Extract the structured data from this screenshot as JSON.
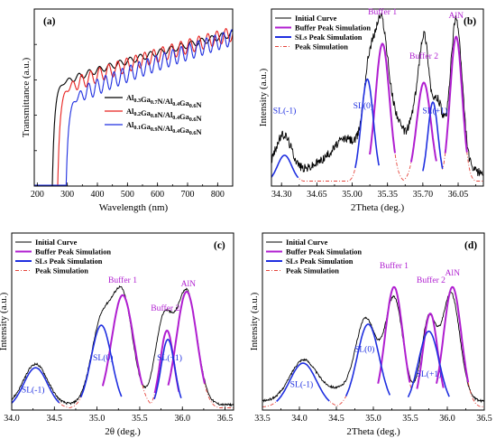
{
  "colors": {
    "black": "#000000",
    "red": "#e8211f",
    "blue": "#1f2fe0",
    "purple": "#b01fd0",
    "redDash": "#e5443b"
  },
  "chart_data": [
    {
      "panel": "(a)",
      "type": "line",
      "xlabel": "Wavelength (nm)",
      "ylabel": "Transmittance (a.u.)",
      "xlim": [
        190,
        850
      ],
      "ylim": [
        0,
        1
      ],
      "xticks": [
        "200",
        "300",
        "400",
        "500",
        "600",
        "700",
        "800"
      ],
      "xtick_values": [
        200,
        300,
        400,
        500,
        600,
        700,
        800
      ],
      "legend_position": "center-right",
      "series": [
        {
          "name": "Al0.3Ga0.7N/Al0.4Ga0.6N",
          "name_parts": [
            [
              "Al",
              false
            ],
            [
              "0.3",
              true
            ],
            [
              "Ga",
              false
            ],
            [
              "0.7",
              true
            ],
            [
              "N/Al",
              false
            ],
            [
              "0.4",
              true
            ],
            [
              "Ga",
              false
            ],
            [
              "0.6",
              true
            ],
            [
              "N",
              false
            ]
          ],
          "color": "#000000",
          "edge": 262,
          "plateau": 0.56,
          "end": 0.86,
          "osc_amp": 0.018,
          "osc_period": 34
        },
        {
          "name": "Al0.2Ga0.8N/Al0.4Ga0.6N",
          "name_parts": [
            [
              "Al",
              false
            ],
            [
              "0.2",
              true
            ],
            [
              "Ga",
              false
            ],
            [
              "0.8",
              true
            ],
            [
              "N/Al",
              false
            ],
            [
              "0.4",
              true
            ],
            [
              "Ga",
              false
            ],
            [
              "0.6",
              true
            ],
            [
              "N",
              false
            ]
          ],
          "color": "#e8211f",
          "edge": 280,
          "plateau": 0.53,
          "end": 0.86,
          "osc_amp": 0.04,
          "osc_period": 30
        },
        {
          "name": "Al0.1Ga0.9N/Al0.4Ga0.6N",
          "name_parts": [
            [
              "Al",
              false
            ],
            [
              "0.1",
              true
            ],
            [
              "Ga",
              false
            ],
            [
              "0.9",
              true
            ],
            [
              "N/Al",
              false
            ],
            [
              "0.4",
              true
            ],
            [
              "Ga",
              false
            ],
            [
              "0.6",
              true
            ],
            [
              "N",
              false
            ]
          ],
          "color": "#1f2fe0",
          "edge": 308,
          "plateau": 0.47,
          "end": 0.84,
          "osc_amp": 0.045,
          "osc_period": 28
        }
      ]
    },
    {
      "panel": "(b)",
      "type": "line",
      "xlabel": "2Theta (deg.)",
      "ylabel": "Intensity (a.u.)",
      "xlim": [
        34.2,
        36.3
      ],
      "ylim": [
        0,
        1
      ],
      "xticks": [
        "34.30",
        "34.65",
        "35.00",
        "35.35",
        "35.70",
        "36.05"
      ],
      "xtick_values": [
        34.3,
        34.65,
        35.0,
        35.35,
        35.7,
        36.05
      ],
      "legend_position": "top-left",
      "legend": [
        "Initial Curve",
        "Buffer Peak Simulation",
        "SLs Peak Simulation",
        "Peak Simulation"
      ],
      "baseline": 0.08,
      "initial_peaks": [
        [
          34.32,
          0.21,
          0.08
        ],
        [
          34.72,
          0.05,
          0.12
        ],
        [
          34.95,
          0.18,
          0.12
        ],
        [
          35.17,
          0.55,
          0.06
        ],
        [
          35.29,
          0.72,
          0.06
        ],
        [
          35.42,
          0.3,
          0.08
        ],
        [
          35.63,
          0.32,
          0.07
        ],
        [
          35.72,
          0.62,
          0.05
        ],
        [
          35.85,
          0.38,
          0.05
        ],
        [
          36.03,
          0.86,
          0.06
        ]
      ],
      "buffer_peaks": [
        [
          35.3,
          0.78,
          0.07
        ],
        [
          35.71,
          0.56,
          0.07
        ],
        [
          36.03,
          0.82,
          0.06
        ]
      ],
      "sl_peaks": [
        [
          34.33,
          0.15,
          0.07
        ],
        [
          35.15,
          0.58,
          0.06
        ],
        [
          35.8,
          0.45,
          0.05
        ]
      ],
      "annotations": [
        {
          "text": "Buffer 1",
          "x": 35.3,
          "y": 0.97,
          "color": "#b01fd0"
        },
        {
          "text": "Buffer 2",
          "x": 35.71,
          "y": 0.72,
          "color": "#b01fd0"
        },
        {
          "text": "AlN",
          "x": 36.03,
          "y": 0.95,
          "color": "#b01fd0"
        },
        {
          "text": "SL(-1)",
          "x": 34.33,
          "y": 0.41,
          "color": "#1f2fe0"
        },
        {
          "text": "SL(0)",
          "x": 35.11,
          "y": 0.44,
          "color": "#1f2fe0"
        },
        {
          "text": "SL(+1)",
          "x": 35.82,
          "y": 0.41,
          "color": "#1f2fe0"
        }
      ]
    },
    {
      "panel": "(c)",
      "type": "line",
      "xlabel": "2θ (deg.)",
      "ylabel": "Intensity (a.u.)",
      "xlim": [
        34.0,
        36.6
      ],
      "ylim": [
        0,
        1
      ],
      "xticks": [
        "34.0",
        "34.5",
        "35.0",
        "35.5",
        "36.0",
        "36.5"
      ],
      "xtick_values": [
        34.0,
        34.5,
        35.0,
        35.5,
        36.0,
        36.5
      ],
      "legend_position": "top-left",
      "legend": [
        "Initial Curve",
        "Buffer Peak Simulation",
        "SLs Peak Simulation",
        "Peak Simulation"
      ],
      "baseline": 0.03,
      "initial_peaks": [
        [
          34.28,
          0.23,
          0.14
        ],
        [
          35.05,
          0.45,
          0.12
        ],
        [
          35.3,
          0.6,
          0.12
        ],
        [
          35.78,
          0.47,
          0.1
        ],
        [
          36.05,
          0.64,
          0.12
        ]
      ],
      "buffer_peaks": [
        [
          35.3,
          0.64,
          0.13
        ],
        [
          35.82,
          0.44,
          0.08
        ],
        [
          36.05,
          0.66,
          0.12
        ]
      ],
      "sl_peaks": [
        [
          34.28,
          0.23,
          0.14
        ],
        [
          35.05,
          0.47,
          0.12
        ],
        [
          35.83,
          0.39,
          0.08
        ]
      ],
      "annotations": [
        {
          "text": "Buffer 1",
          "x": 35.3,
          "y": 0.72,
          "color": "#b01fd0"
        },
        {
          "text": "Buffer 2",
          "x": 35.8,
          "y": 0.56,
          "color": "#b01fd0"
        },
        {
          "text": "AlN",
          "x": 36.07,
          "y": 0.7,
          "color": "#b01fd0"
        },
        {
          "text": "SL(-1)",
          "x": 34.25,
          "y": 0.1,
          "color": "#1f2fe0"
        },
        {
          "text": "SL(0)",
          "x": 35.07,
          "y": 0.28,
          "color": "#1f2fe0"
        },
        {
          "text": "SL(+1)",
          "x": 35.85,
          "y": 0.28,
          "color": "#1f2fe0"
        }
      ]
    },
    {
      "panel": "(d)",
      "type": "line",
      "xlabel": "2Theta (deg.)",
      "ylabel": "Intensity (a.u.)",
      "xlim": [
        33.5,
        36.5
      ],
      "ylim": [
        0,
        1
      ],
      "xticks": [
        "33.5",
        "34.0",
        "34.5",
        "35.0",
        "35.5",
        "36.0",
        "36.5"
      ],
      "xtick_values": [
        33.5,
        34.0,
        34.5,
        35.0,
        35.5,
        36.0,
        36.5
      ],
      "legend_position": "top-left",
      "legend": [
        "Initial Curve",
        "Buffer Peak Simulation",
        "SLs Peak Simulation",
        "Peak Simulation"
      ],
      "baseline": 0.05,
      "initial_peaks": [
        [
          34.05,
          0.23,
          0.18
        ],
        [
          34.5,
          0.06,
          0.2
        ],
        [
          34.9,
          0.46,
          0.14
        ],
        [
          35.28,
          0.58,
          0.12
        ],
        [
          35.75,
          0.46,
          0.1
        ],
        [
          36.05,
          0.61,
          0.12
        ]
      ],
      "buffer_peaks": [
        [
          35.28,
          0.68,
          0.12
        ],
        [
          35.77,
          0.53,
          0.1
        ],
        [
          36.07,
          0.68,
          0.12
        ]
      ],
      "sl_peaks": [
        [
          34.05,
          0.25,
          0.18
        ],
        [
          34.93,
          0.47,
          0.15
        ],
        [
          35.75,
          0.43,
          0.14
        ]
      ],
      "annotations": [
        {
          "text": "Buffer 1",
          "x": 35.28,
          "y": 0.8,
          "color": "#b01fd0"
        },
        {
          "text": "Buffer 2",
          "x": 35.78,
          "y": 0.72,
          "color": "#b01fd0"
        },
        {
          "text": "AlN",
          "x": 36.07,
          "y": 0.76,
          "color": "#b01fd0"
        },
        {
          "text": "SL(-1)",
          "x": 34.03,
          "y": 0.13,
          "color": "#1f2fe0"
        },
        {
          "text": "SL(0)",
          "x": 34.88,
          "y": 0.33,
          "color": "#1f2fe0"
        },
        {
          "text": "SL(+1)",
          "x": 35.75,
          "y": 0.19,
          "color": "#1f2fe0"
        }
      ]
    }
  ]
}
